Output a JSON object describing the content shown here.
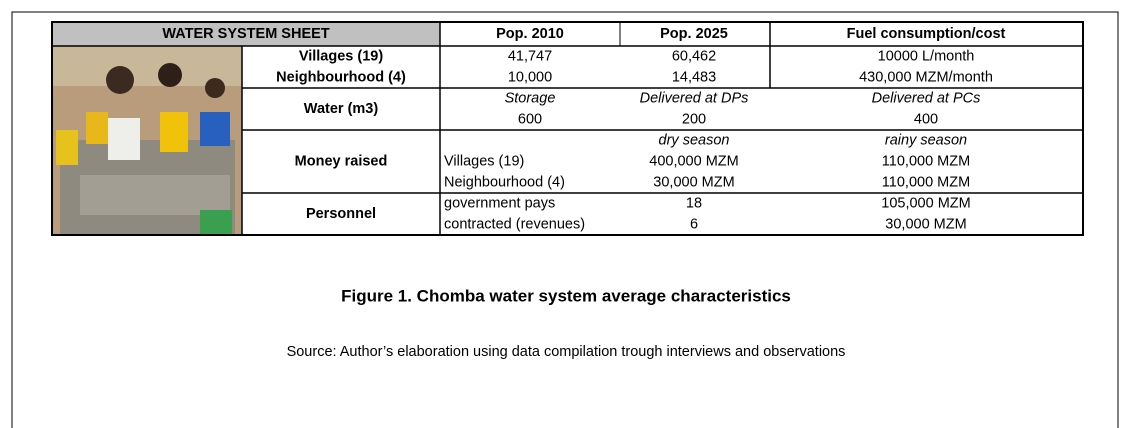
{
  "table": {
    "header": [
      "WATER SYSTEM SHEET",
      "Pop. 2010",
      "Pop. 2025",
      "Fuel consumption/cost"
    ],
    "population": [
      {
        "label": "Villages (19)",
        "values": [
          "41,747",
          "60,462",
          "10000 L/month"
        ]
      },
      {
        "label": "Neighbourhood (4)",
        "values": [
          "10,000",
          "14,483",
          "430,000 MZM/month"
        ]
      }
    ],
    "water": {
      "label": "Water (m3)",
      "subheaders": [
        "Storage",
        "Delivered at DPs",
        "Delivered at PCs"
      ],
      "values": [
        "600",
        "200",
        "400"
      ]
    },
    "money": {
      "label": "Money raised",
      "seasons": [
        "dry season",
        "rainy season"
      ],
      "rows": [
        {
          "name": "Villages (19)",
          "dry": "400,000 MZM",
          "rainy": "110,000 MZM"
        },
        {
          "name": "Neighbourhood (4)",
          "dry": "30,000 MZM",
          "rainy": "110,000 MZM"
        }
      ]
    },
    "personnel": {
      "label": "Personnel",
      "rows": [
        {
          "name": "government pays",
          "count": "18",
          "cost": "105,000 MZM"
        },
        {
          "name": "contracted (revenues)",
          "count": "6",
          "cost": "30,000 MZM"
        }
      ]
    }
  },
  "caption": "Figure 1. Chomba water system average characteristics",
  "source": "Source: Author’s elaboration using data compilation trough interviews and observations"
}
